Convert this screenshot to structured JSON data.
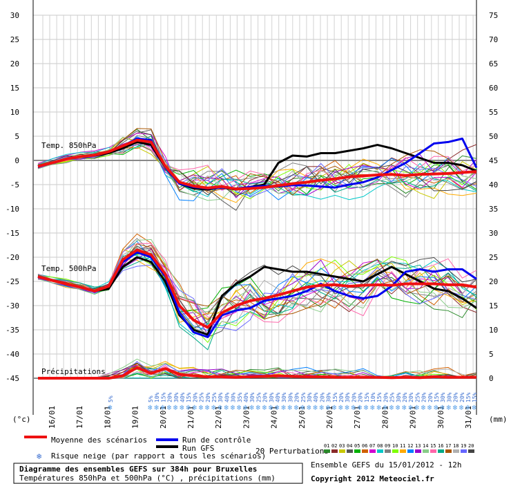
{
  "chart_data": {
    "type": "line",
    "title": "Diagramme des ensembles GEFS sur 384h pour Bruxelles",
    "subtitle": "Températures 850hPa et 500hPa (°C) , précipitations (mm)",
    "left_axis_unit": "(°c)",
    "right_axis_unit": "(mm)",
    "left_ticks": [
      30,
      25,
      20,
      15,
      10,
      5,
      0,
      -5,
      -10,
      -15,
      -20,
      -25,
      -30,
      -35,
      -40,
      -45
    ],
    "right_ticks": [
      75,
      70,
      65,
      60,
      55,
      50,
      45,
      40,
      35,
      30,
      25,
      20,
      15,
      10,
      5,
      0
    ],
    "x_labels": [
      "16/01",
      "17/01",
      "18/01",
      "19/01",
      "20/01",
      "21/01",
      "22/01",
      "23/01",
      "24/01",
      "25/01",
      "26/01",
      "27/01",
      "28/01",
      "29/01",
      "30/01",
      "31/01"
    ],
    "panel_labels": {
      "t850": "Temp. 850hPa",
      "t500": "Temp. 500hPa",
      "precip": "Précipitations"
    },
    "legend": {
      "mean": "Moyenne des scénarios",
      "control": "Run de contrôle",
      "gfs": "Run GFS",
      "snow": "Risque neige (par rapport a tous les scénarios)",
      "perturbations": "20 Perturbations",
      "pert_numbers": [
        "01",
        "02",
        "03",
        "04",
        "05",
        "06",
        "07",
        "08",
        "09",
        "10",
        "11",
        "12",
        "13",
        "14",
        "15",
        "16",
        "17",
        "18",
        "19",
        "20"
      ]
    },
    "footer": {
      "run": "Ensemble GEFS du 15/01/2012 - 12h",
      "copyright": "Copyright 2012 Meteociel.fr"
    },
    "snow_risk": [
      "5%",
      "",
      "",
      "5%",
      "10%",
      "15%",
      "20%",
      "30%",
      "40%",
      "15%",
      "20%",
      "25%",
      "20%",
      "25%",
      "30%",
      "40%",
      "30%",
      "35%",
      "40%",
      "30%",
      "25%",
      "20%",
      "30%",
      "40%",
      "30%",
      "30%",
      "20%",
      "25%",
      "30%",
      "40%",
      "20%",
      "30%",
      "15%",
      "20%",
      "30%",
      "20%",
      "20%",
      "15%",
      "10%",
      "15%",
      "20%",
      "25%",
      "30%",
      "20%",
      "20%",
      "25%",
      "20%",
      "20%",
      "15%",
      "30%",
      "30%",
      "20%",
      "20%",
      "15%",
      "15%"
    ],
    "series": {
      "t850_mean": [
        -1.2,
        -0.5,
        0.3,
        0.8,
        1.1,
        1.8,
        3.0,
        4.2,
        3.8,
        -1.2,
        -4.5,
        -5.3,
        -5.7,
        -5.4,
        -5.9,
        -5.8,
        -5.6,
        -5.2,
        -4.8,
        -4.5,
        -4.1,
        -3.8,
        -3.4,
        -3.2,
        -3.0,
        -2.9,
        -3.1,
        -2.9,
        -2.8,
        -2.7,
        -2.5,
        -2.3
      ],
      "t850_control": [
        -1.2,
        -0.5,
        0.3,
        0.8,
        1.1,
        1.8,
        3.0,
        4.5,
        4.2,
        -1.5,
        -4.8,
        -5.5,
        -5.8,
        -5.6,
        -5.8,
        -5.5,
        -5.3,
        -5.4,
        -5.1,
        -5.2,
        -5.4,
        -5.6,
        -5.0,
        -4.5,
        -3.5,
        -2.0,
        -0.5,
        1.5,
        3.5,
        3.8,
        4.5,
        -1.5
      ],
      "t850_gfs": [
        -1.2,
        -0.5,
        0.3,
        0.8,
        1.0,
        1.5,
        2.5,
        3.8,
        3.2,
        -1.5,
        -4.8,
        -5.8,
        -6.0,
        -5.6,
        -6.0,
        -5.5,
        -5.0,
        -0.5,
        1.0,
        0.8,
        1.5,
        1.5,
        2.0,
        2.5,
        3.2,
        2.5,
        1.5,
        0.5,
        -0.5,
        -0.5,
        -1.0,
        -2.2
      ],
      "t500_mean": [
        -24.0,
        -24.8,
        -25.5,
        -26.2,
        -27.0,
        -26.0,
        -20.5,
        -18.5,
        -19.5,
        -23.5,
        -30.0,
        -33.0,
        -34.5,
        -31.5,
        -30.0,
        -29.0,
        -28.5,
        -27.8,
        -27.0,
        -26.2,
        -25.8,
        -25.7,
        -26.0,
        -25.8,
        -25.7,
        -25.8,
        -25.5,
        -25.5,
        -25.5,
        -25.7,
        -25.7,
        -26.2
      ],
      "t500_control": [
        -24.0,
        -24.8,
        -25.5,
        -26.2,
        -27.0,
        -26.0,
        -21.0,
        -19.0,
        -20.0,
        -24.0,
        -31.5,
        -35.5,
        -36.5,
        -32.0,
        -31.0,
        -30.5,
        -29.0,
        -28.5,
        -28.0,
        -27.0,
        -25.5,
        -27.0,
        -28.0,
        -28.5,
        -28.0,
        -26.0,
        -23.0,
        -22.5,
        -23.0,
        -22.5,
        -22.5,
        -24.5
      ],
      "t500_gfs": [
        -24.0,
        -24.8,
        -25.5,
        -26.2,
        -27.0,
        -26.5,
        -22.0,
        -20.0,
        -21.0,
        -25.0,
        -32.0,
        -35.0,
        -36.0,
        -28.0,
        -25.5,
        -24.0,
        -22.0,
        -22.5,
        -23.0,
        -23.0,
        -23.5,
        -24.0,
        -24.5,
        -25.0,
        -23.5,
        -22.0,
        -23.5,
        -25.0,
        -26.5,
        -27.0,
        -28.5,
        -30.5
      ],
      "precip_mean": [
        0,
        0,
        0,
        0,
        0,
        0,
        0.5,
        2.2,
        1.0,
        2.0,
        0.8,
        0.5,
        0.3,
        0.3,
        0.2,
        0.3,
        0.4,
        0.5,
        0.4,
        0.3,
        0.3,
        0.2,
        0.2,
        0.2,
        0.2,
        0.1,
        0.2,
        0.1,
        0.3,
        0.2,
        0.2,
        0.2
      ]
    }
  }
}
